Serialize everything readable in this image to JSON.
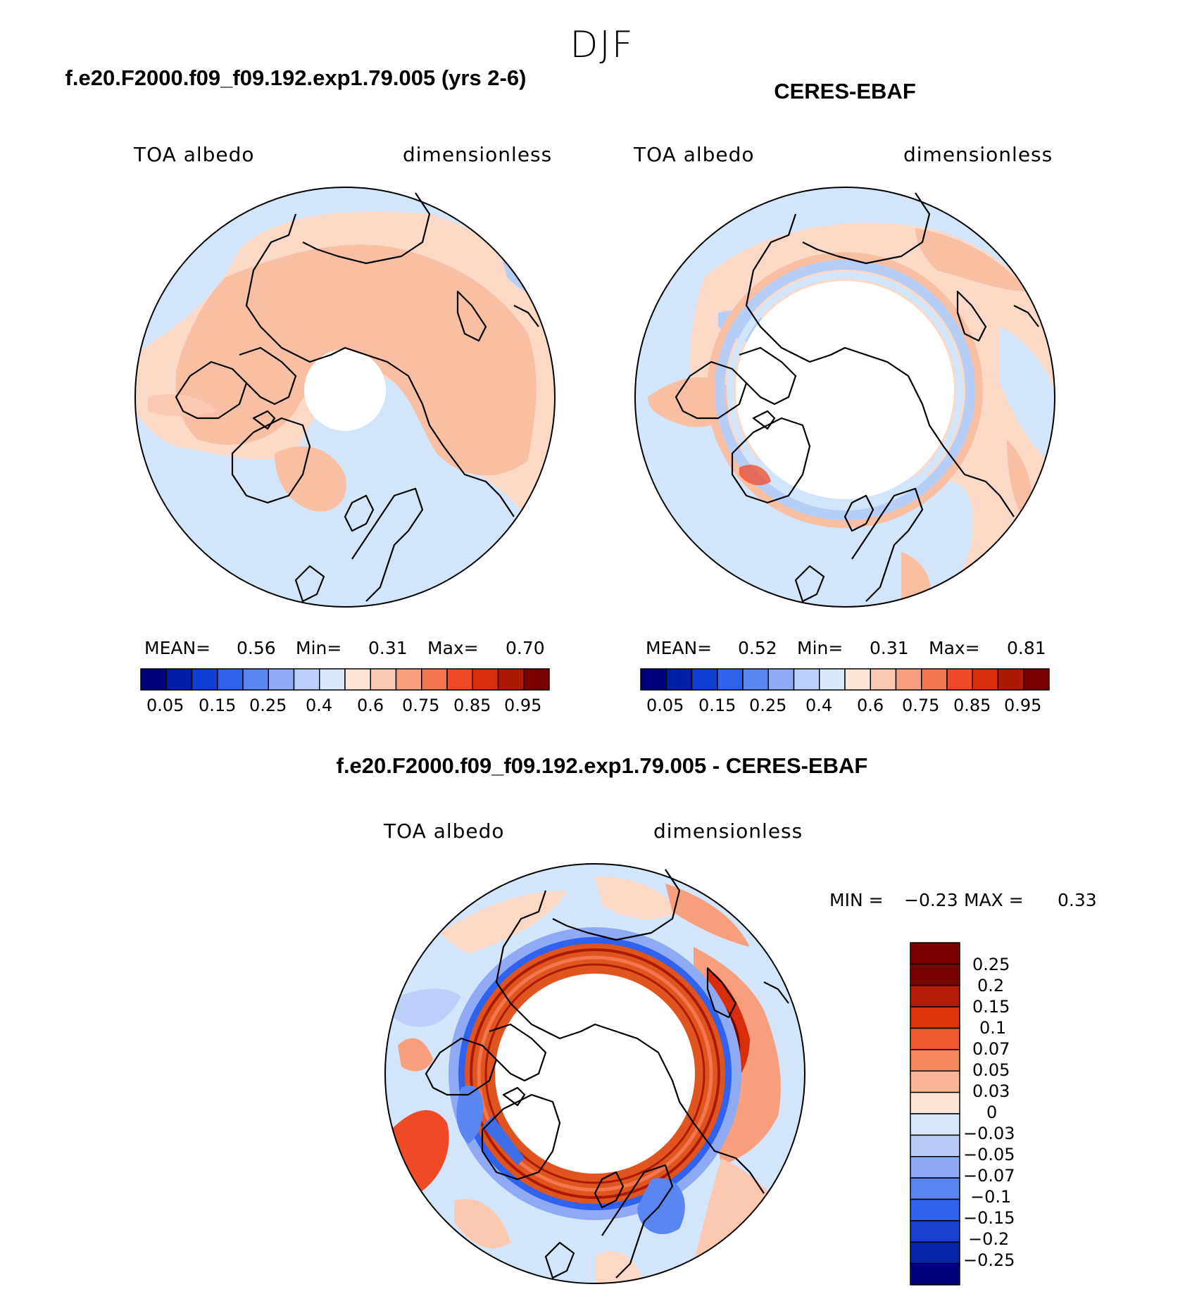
{
  "season": "DJF",
  "panels": [
    {
      "title": "f.e20.F2000.f09_f09.192.exp1.79.005 (yrs 2-6)",
      "variable": "TOA albedo",
      "units": "dimensionless",
      "stats": {
        "mean_label": "MEAN=",
        "mean": "0.56",
        "min_label": "Min=",
        "min": "0.31",
        "max_label": "Max=",
        "max": "0.70"
      }
    },
    {
      "title": "CERES-EBAF",
      "variable": "TOA albedo",
      "units": "dimensionless",
      "stats": {
        "mean_label": "MEAN=",
        "mean": "0.52",
        "min_label": "Min=",
        "min": "0.31",
        "max_label": "Max=",
        "max": "0.81"
      }
    },
    {
      "title": "f.e20.F2000.f09_f09.192.exp1.79.005 - CERES-EBAF",
      "variable": "TOA albedo",
      "units": "dimensionless",
      "stats": {
        "min_label": "MIN =",
        "min": "−0.23",
        "max_label": "MAX =",
        "max": "0.33"
      }
    }
  ],
  "colorbar_abs": {
    "colors": [
      "#00007f",
      "#001fa8",
      "#0f3fd6",
      "#2f62ee",
      "#5a86f2",
      "#8eaaf4",
      "#bccff8",
      "#dbe9fc",
      "#fde6d7",
      "#fcc9b0",
      "#f8a07e",
      "#f4764f",
      "#ef4a26",
      "#d82e0c",
      "#ac1a06",
      "#7a0000"
    ],
    "labels": [
      "0.05",
      "0.15",
      "0.25",
      "0.4",
      "0.6",
      "0.75",
      "0.85",
      "0.95"
    ]
  },
  "colorbar_diff": {
    "colors": [
      "#7a0000",
      "#b51a06",
      "#db3509",
      "#f15a2c",
      "#f7875c",
      "#fbb494",
      "#fde6d7",
      "#dbe9fc",
      "#b8ccf8",
      "#8caaf4",
      "#5a86f2",
      "#2f62ee",
      "#1740d0",
      "#0626a6",
      "#00007f"
    ],
    "labels": [
      "0.25",
      "0.2",
      "0.15",
      "0.1",
      "0.07",
      "0.05",
      "0.03",
      "0",
      "−0.03",
      "−0.05",
      "−0.07",
      "−0.1",
      "−0.15",
      "−0.2",
      "−0.25"
    ]
  },
  "map_colors": {
    "ocean_blue": "#d3e5fb",
    "land_peach": "#fbd9c6",
    "salmon": "#f8bfa3",
    "mid_blue": "#b6cdf6",
    "red": "#e8451f",
    "dark_red": "#b81a06",
    "blue": "#3e6fe8"
  }
}
